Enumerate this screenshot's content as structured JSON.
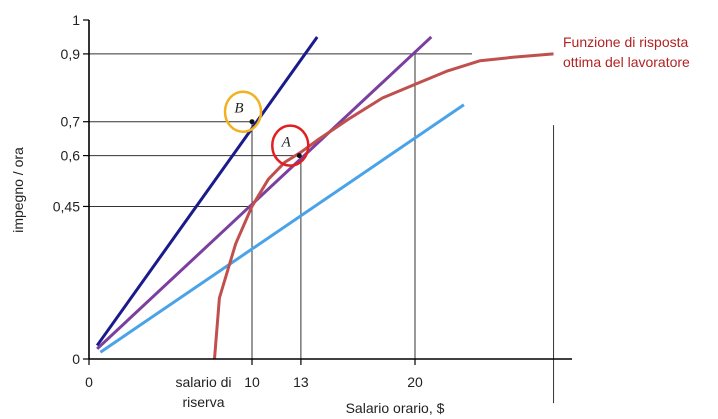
{
  "chart_data": {
    "type": "line",
    "title": "",
    "xlabel": "Salario orario, $",
    "ylabel": "impegno / ora",
    "xlim": [
      0,
      28
    ],
    "ylim": [
      0,
      1
    ],
    "x_ticks": [
      {
        "value": 0,
        "label": "0"
      },
      {
        "value": 10,
        "label": "10"
      },
      {
        "value": 13,
        "label": "13"
      },
      {
        "value": 20,
        "label": "20"
      }
    ],
    "x_reservation": {
      "value": 7.7,
      "label_lines": [
        "salario di",
        "riserva"
      ]
    },
    "y_ticks": [
      {
        "value": 0,
        "label": "0"
      },
      {
        "value": 0.45,
        "label": "0,45"
      },
      {
        "value": 0.6,
        "label": "0,6"
      },
      {
        "value": 0.7,
        "label": "0,7"
      },
      {
        "value": 0.9,
        "label": "0,9"
      },
      {
        "value": 1,
        "label": "1"
      }
    ],
    "series": [
      {
        "kind": "line",
        "color": "#1a1a8c",
        "points": [
          [
            0.5,
            0.04
          ],
          [
            14,
            0.95
          ]
        ]
      },
      {
        "kind": "line",
        "color": "#7b3fa0",
        "points": [
          [
            0.5,
            0.03
          ],
          [
            21,
            0.95
          ]
        ]
      },
      {
        "kind": "line",
        "color": "#4aa3e8",
        "points": [
          [
            0.7,
            0.02
          ],
          [
            23,
            0.75
          ]
        ]
      },
      {
        "kind": "curve",
        "color": "#c0504d",
        "points": [
          [
            7.7,
            0
          ],
          [
            8,
            0.18
          ],
          [
            9,
            0.34
          ],
          [
            10,
            0.45
          ],
          [
            11,
            0.53
          ],
          [
            12,
            0.58
          ],
          [
            13,
            0.61
          ],
          [
            14,
            0.645
          ],
          [
            16,
            0.71
          ],
          [
            18,
            0.77
          ],
          [
            20,
            0.81
          ],
          [
            22,
            0.85
          ],
          [
            24,
            0.88
          ],
          [
            26,
            0.89
          ],
          [
            28.5,
            0.9
          ]
        ]
      }
    ],
    "guides": [
      {
        "from": [
          0,
          0.9
        ],
        "to": [
          23.5,
          0.9
        ]
      },
      {
        "from": [
          20,
          0
        ],
        "to": [
          20,
          0.9
        ]
      },
      {
        "from": [
          0,
          0.7
        ],
        "to": [
          10,
          0.7
        ]
      },
      {
        "from": [
          10,
          0
        ],
        "to": [
          10,
          0.7
        ]
      },
      {
        "from": [
          0,
          0.6
        ],
        "to": [
          13,
          0.6
        ]
      },
      {
        "from": [
          13,
          0
        ],
        "to": [
          13,
          0.6
        ]
      },
      {
        "from": [
          0,
          0.45
        ],
        "to": [
          10,
          0.45
        ]
      },
      {
        "from": [
          28.5,
          -0.13
        ],
        "to": [
          28.5,
          0.69
        ]
      }
    ],
    "points": [
      {
        "label": "B",
        "x": 10,
        "y": 0.7,
        "circle_color": "#f2b120"
      },
      {
        "label": "A",
        "x": 12.9,
        "y": 0.6,
        "circle_color": "#e02020"
      }
    ],
    "annotation": {
      "lines": [
        "Funzione di risposta",
        "ottima del lavoratore"
      ],
      "color": "#b22222"
    },
    "grid": false,
    "legend": "none"
  }
}
